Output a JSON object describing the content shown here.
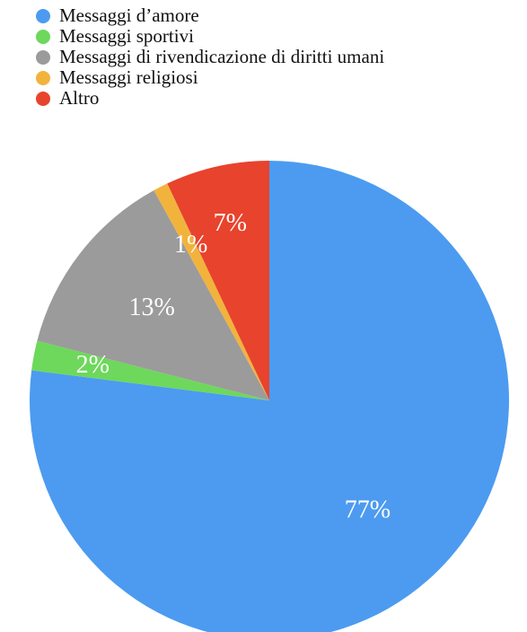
{
  "chart_data": {
    "type": "pie",
    "title": "",
    "legend_position": "top-left",
    "slices": [
      {
        "label": "Messaggi d’amore",
        "value": 77,
        "value_label": "77%",
        "color": "#4C9BF0"
      },
      {
        "label": "Messaggi sportivi",
        "value": 2,
        "value_label": "2%",
        "color": "#6DD85B"
      },
      {
        "label": "Messaggi di rivendicazione di diritti umani",
        "value": 13,
        "value_label": "13%",
        "color": "#9B9B9B"
      },
      {
        "label": "Messaggi religiosi",
        "value": 1,
        "value_label": "1%",
        "color": "#F2B33D"
      },
      {
        "label": "Altro",
        "value": 7,
        "value_label": "7%",
        "color": "#E8432D"
      }
    ],
    "start_angle_deg": 0,
    "direction": "clockwise"
  }
}
